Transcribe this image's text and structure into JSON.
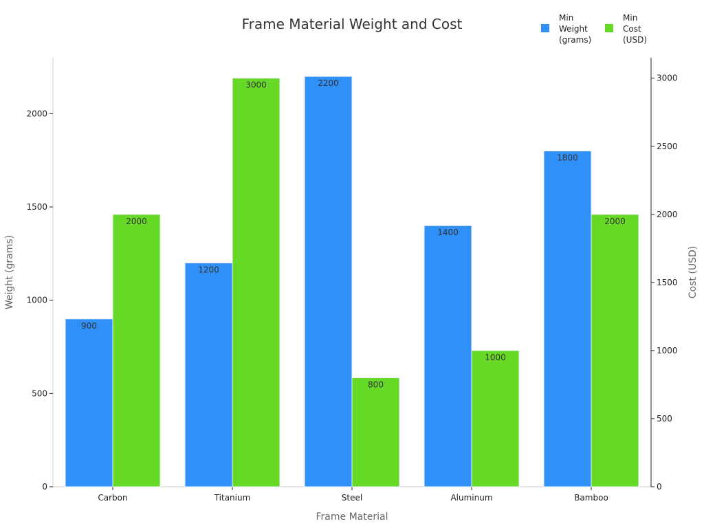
{
  "chart_data": {
    "type": "bar",
    "title": "Frame Material Weight and Cost",
    "xlabel": "Frame Material",
    "ylabel_left": "Weight (grams)",
    "ylabel_right": "Cost (USD)",
    "categories": [
      "Carbon",
      "Titanium",
      "Steel",
      "Aluminum",
      "Bamboo"
    ],
    "series": [
      {
        "name": "Min Weight (grams)",
        "legend_lines": [
          "Min",
          "Weight",
          "(grams)"
        ],
        "axis": "left",
        "color": "#2f90f7",
        "values": [
          900,
          1200,
          2200,
          1400,
          1800
        ]
      },
      {
        "name": "Min Cost (USD)",
        "legend_lines": [
          "Min",
          "Cost",
          "(USD)"
        ],
        "axis": "right",
        "color": "#66d927",
        "values": [
          2000,
          3000,
          800,
          1000,
          2000
        ]
      }
    ],
    "ylim_left": [
      0,
      2300
    ],
    "ylim_right": [
      0,
      3150
    ],
    "yticks_left": [
      0,
      500,
      1000,
      1500,
      2000
    ],
    "yticks_right": [
      0,
      500,
      1000,
      1500,
      2000,
      2500,
      3000
    ],
    "legend_position": "top-right",
    "grid": false
  }
}
